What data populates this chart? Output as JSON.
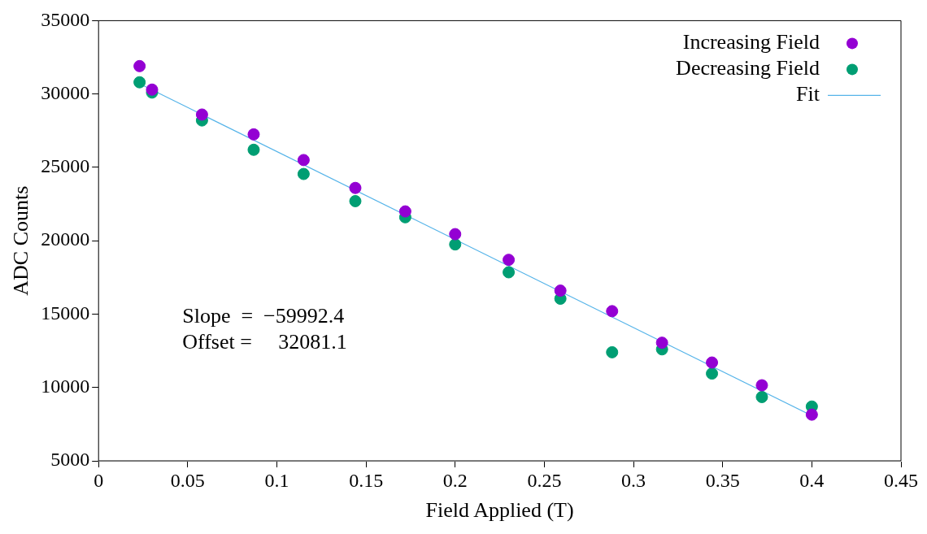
{
  "chart_data": {
    "type": "scatter",
    "xlabel": "Field Applied (T)",
    "ylabel": "ADC Counts",
    "xlim": [
      0,
      0.45
    ],
    "xticks": [
      0,
      0.05,
      0.1,
      0.15,
      0.2,
      0.25,
      0.3,
      0.35,
      0.4,
      0.45
    ],
    "ylim": [
      5000,
      35000
    ],
    "yticks": [
      5000,
      10000,
      15000,
      20000,
      25000,
      30000,
      35000
    ],
    "grid": false,
    "legend": "top right",
    "marker": "circle",
    "x": [
      0.023,
      0.03,
      0.058,
      0.087,
      0.115,
      0.144,
      0.172,
      0.2,
      0.23,
      0.259,
      0.288,
      0.316,
      0.344,
      0.372,
      0.4
    ],
    "series": [
      {
        "name": "Increasing Field",
        "color": "#9400d3",
        "values": [
          31900,
          30300,
          28600,
          27250,
          25500,
          23600,
          22000,
          20450,
          18700,
          16600,
          15200,
          13050,
          11700,
          10150,
          8150
        ]
      },
      {
        "name": "Decreasing Field",
        "color": "#009e73",
        "values": [
          30800,
          30100,
          28200,
          26200,
          24550,
          22700,
          21600,
          19750,
          17850,
          16050,
          12400,
          12600,
          10950,
          9350,
          8700
        ]
      },
      {
        "name": "Fit",
        "type": "line",
        "color": "#56b4e9",
        "marker": "none",
        "x": [
          0.023,
          0.4
        ],
        "values": [
          30700,
          8080
        ]
      }
    ],
    "annotations": [
      "Slope  =  −59992.4",
      "Offset =     32081.1"
    ]
  }
}
